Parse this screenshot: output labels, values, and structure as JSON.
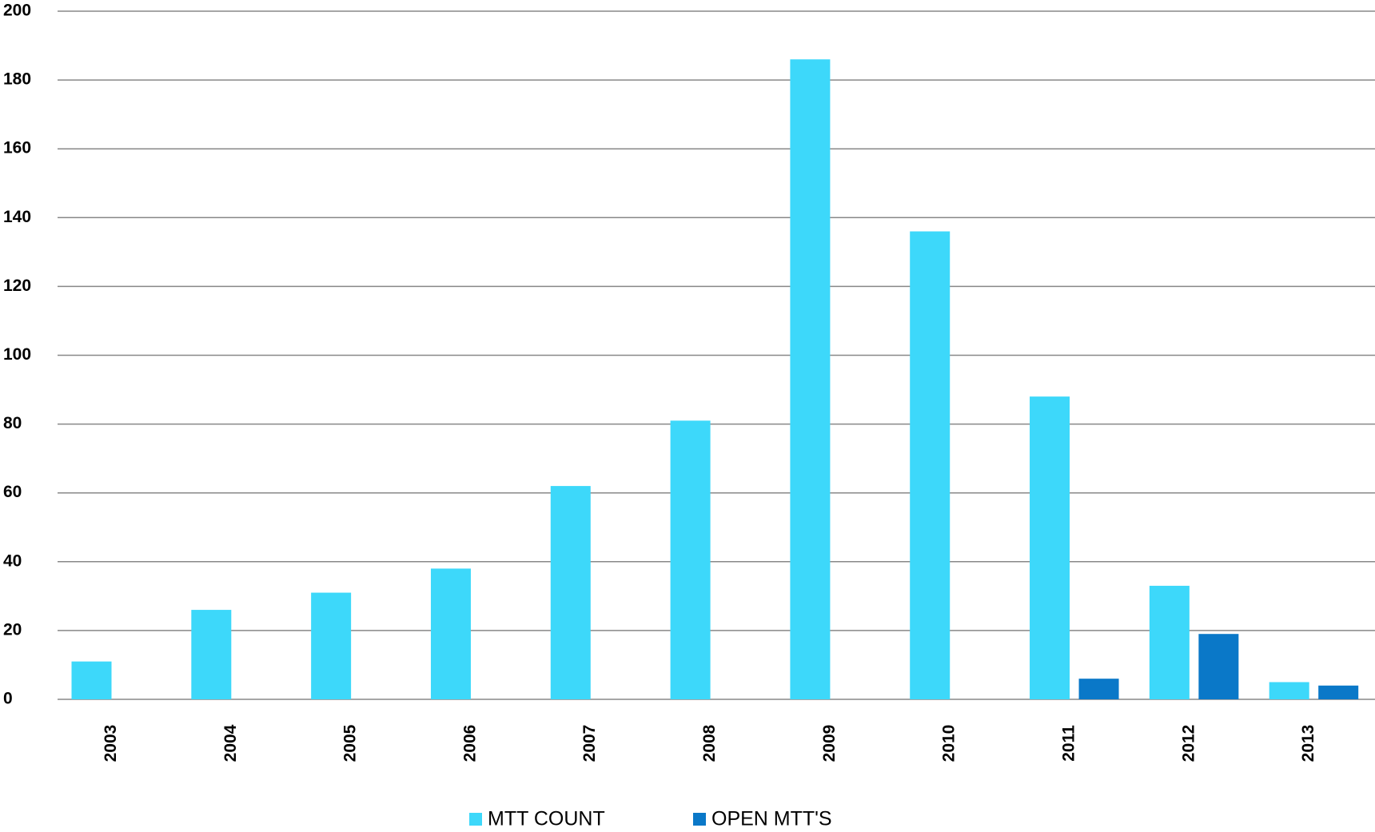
{
  "chart_data": {
    "type": "bar",
    "categories": [
      "2003",
      "2004",
      "2005",
      "2006",
      "2007",
      "2008",
      "2009",
      "2010",
      "2011",
      "2012",
      "2013"
    ],
    "series": [
      {
        "name": "MTT COUNT",
        "color": "#3dd8fa",
        "values": [
          11,
          26,
          31,
          38,
          62,
          81,
          186,
          136,
          88,
          33,
          5
        ]
      },
      {
        "name": "OPEN MTT'S",
        "color": "#0a78c8",
        "values": [
          null,
          null,
          null,
          null,
          null,
          null,
          null,
          null,
          6,
          19,
          4
        ]
      }
    ],
    "ylim": [
      0,
      200
    ],
    "yticks": [
      0,
      20,
      40,
      60,
      80,
      100,
      120,
      140,
      160,
      180,
      200
    ],
    "grid": true
  }
}
